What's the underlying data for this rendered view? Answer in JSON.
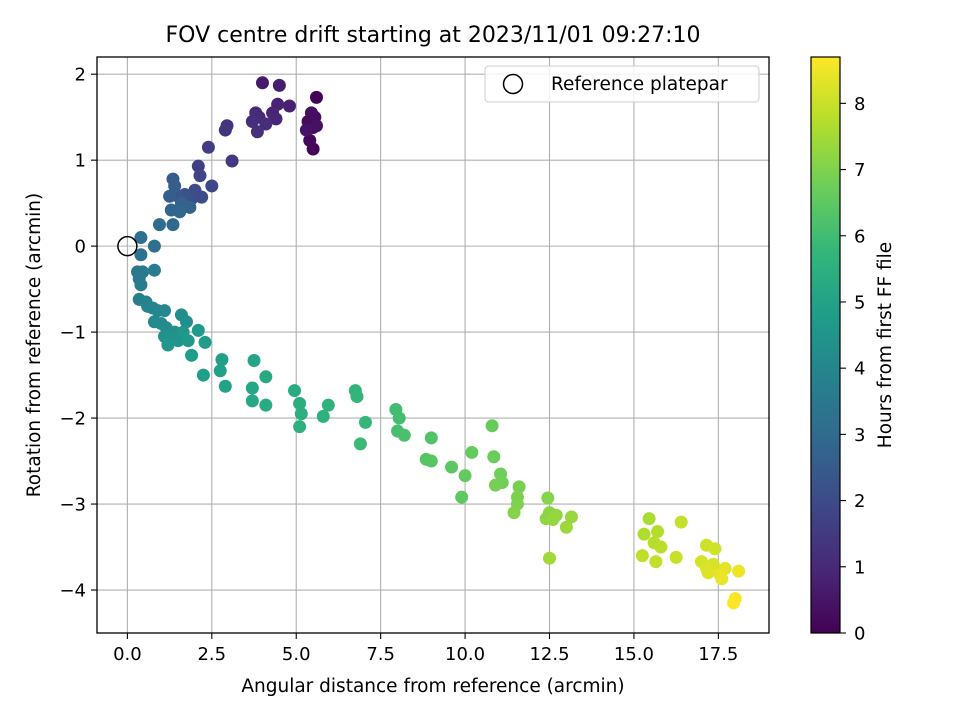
{
  "chart_data": {
    "type": "scatter",
    "title": "FOV centre drift starting at 2023/11/01 09:27:10",
    "xlabel": "Angular distance from reference (arcmin)",
    "ylabel": "Rotation from reference (arcmin)",
    "xlim": [
      -0.9,
      19
    ],
    "ylim": [
      -4.5,
      2.2
    ],
    "xticks": [
      "0.0",
      "2.5",
      "5.0",
      "7.5",
      "10.0",
      "12.5",
      "15.0",
      "17.5"
    ],
    "xtick_values": [
      0,
      2.5,
      5,
      7.5,
      10,
      12.5,
      15,
      17.5
    ],
    "yticks": [
      "−4",
      "−3",
      "−2",
      "−1",
      "0",
      "1",
      "2"
    ],
    "ytick_values": [
      -4,
      -3,
      -2,
      -1,
      0,
      1,
      2
    ],
    "grid": true,
    "legend": {
      "position": "top-right",
      "entries": [
        "Reference platepar"
      ]
    },
    "reference_point": {
      "x": 0,
      "y": 0,
      "label": "Reference platepar"
    },
    "colorbar": {
      "label": "Hours from first FF file",
      "colormap": "viridis",
      "range": [
        0,
        8.7
      ],
      "ticks": [
        "0",
        "1",
        "2",
        "3",
        "4",
        "5",
        "6",
        "7",
        "8"
      ],
      "tick_values": [
        0,
        1,
        2,
        3,
        4,
        5,
        6,
        7,
        8
      ]
    },
    "points": [
      {
        "x": 5.6,
        "y": 1.73,
        "h": 0.05
      },
      {
        "x": 5.5,
        "y": 1.13,
        "h": 0.1
      },
      {
        "x": 5.4,
        "y": 1.23,
        "h": 0.15
      },
      {
        "x": 5.5,
        "y": 1.38,
        "h": 0.2
      },
      {
        "x": 5.35,
        "y": 1.45,
        "h": 0.25
      },
      {
        "x": 5.55,
        "y": 1.5,
        "h": 0.3
      },
      {
        "x": 5.45,
        "y": 1.55,
        "h": 0.35
      },
      {
        "x": 5.6,
        "y": 1.4,
        "h": 0.4
      },
      {
        "x": 5.3,
        "y": 1.35,
        "h": 0.45
      },
      {
        "x": 4.0,
        "y": 1.9,
        "h": 0.6
      },
      {
        "x": 4.5,
        "y": 1.87,
        "h": 0.7
      },
      {
        "x": 4.8,
        "y": 1.63,
        "h": 0.8
      },
      {
        "x": 4.45,
        "y": 1.65,
        "h": 0.85
      },
      {
        "x": 4.3,
        "y": 1.55,
        "h": 0.9
      },
      {
        "x": 4.4,
        "y": 1.48,
        "h": 0.95
      },
      {
        "x": 3.9,
        "y": 1.5,
        "h": 1.0
      },
      {
        "x": 3.8,
        "y": 1.55,
        "h": 1.05
      },
      {
        "x": 4.1,
        "y": 1.42,
        "h": 1.1
      },
      {
        "x": 3.7,
        "y": 1.45,
        "h": 1.15
      },
      {
        "x": 3.85,
        "y": 1.33,
        "h": 1.2
      },
      {
        "x": 2.95,
        "y": 1.4,
        "h": 1.3
      },
      {
        "x": 2.9,
        "y": 1.35,
        "h": 1.35
      },
      {
        "x": 3.1,
        "y": 0.99,
        "h": 1.45
      },
      {
        "x": 2.4,
        "y": 1.15,
        "h": 1.55
      },
      {
        "x": 2.1,
        "y": 0.93,
        "h": 1.65
      },
      {
        "x": 2.15,
        "y": 0.82,
        "h": 1.75
      },
      {
        "x": 2.5,
        "y": 0.7,
        "h": 1.85
      },
      {
        "x": 2.0,
        "y": 0.65,
        "h": 1.95
      },
      {
        "x": 2.2,
        "y": 0.57,
        "h": 2.05
      },
      {
        "x": 1.9,
        "y": 0.55,
        "h": 2.15
      },
      {
        "x": 1.7,
        "y": 0.6,
        "h": 2.25
      },
      {
        "x": 1.5,
        "y": 0.58,
        "h": 2.35
      },
      {
        "x": 1.35,
        "y": 0.78,
        "h": 2.45
      },
      {
        "x": 1.4,
        "y": 0.7,
        "h": 2.55
      },
      {
        "x": 1.25,
        "y": 0.58,
        "h": 2.6
      },
      {
        "x": 1.6,
        "y": 0.5,
        "h": 2.7
      },
      {
        "x": 1.85,
        "y": 0.45,
        "h": 2.75
      },
      {
        "x": 1.3,
        "y": 0.42,
        "h": 2.8
      },
      {
        "x": 1.55,
        "y": 0.4,
        "h": 2.85
      },
      {
        "x": 1.35,
        "y": 0.25,
        "h": 2.95
      },
      {
        "x": 0.95,
        "y": 0.25,
        "h": 3.05
      },
      {
        "x": 0.4,
        "y": 0.1,
        "h": 3.2
      },
      {
        "x": 0.8,
        "y": 0.0,
        "h": 3.25
      },
      {
        "x": 0.4,
        "y": -0.1,
        "h": 3.35
      },
      {
        "x": 0.3,
        "y": -0.3,
        "h": 3.45
      },
      {
        "x": 0.45,
        "y": -0.3,
        "h": 3.5
      },
      {
        "x": 0.35,
        "y": -0.38,
        "h": 3.55
      },
      {
        "x": 0.8,
        "y": -0.28,
        "h": 3.6
      },
      {
        "x": 0.4,
        "y": -0.45,
        "h": 3.65
      },
      {
        "x": 0.35,
        "y": -0.62,
        "h": 3.75
      },
      {
        "x": 0.55,
        "y": -0.65,
        "h": 3.85
      },
      {
        "x": 0.6,
        "y": -0.7,
        "h": 3.9
      },
      {
        "x": 0.75,
        "y": -0.72,
        "h": 3.95
      },
      {
        "x": 0.9,
        "y": -0.75,
        "h": 4.0
      },
      {
        "x": 1.1,
        "y": -0.75,
        "h": 4.05
      },
      {
        "x": 0.8,
        "y": -0.88,
        "h": 4.1
      },
      {
        "x": 1.0,
        "y": -0.9,
        "h": 4.15
      },
      {
        "x": 1.15,
        "y": -0.95,
        "h": 4.2
      },
      {
        "x": 1.6,
        "y": -0.8,
        "h": 4.25
      },
      {
        "x": 1.75,
        "y": -0.88,
        "h": 4.3
      },
      {
        "x": 1.4,
        "y": -1.0,
        "h": 4.35
      },
      {
        "x": 1.1,
        "y": -1.05,
        "h": 4.4
      },
      {
        "x": 1.3,
        "y": -1.08,
        "h": 4.45
      },
      {
        "x": 1.5,
        "y": -1.1,
        "h": 4.5
      },
      {
        "x": 1.2,
        "y": -1.15,
        "h": 4.55
      },
      {
        "x": 1.65,
        "y": -1.0,
        "h": 4.6
      },
      {
        "x": 1.8,
        "y": -1.1,
        "h": 4.65
      },
      {
        "x": 2.1,
        "y": -0.98,
        "h": 4.7
      },
      {
        "x": 2.3,
        "y": -1.12,
        "h": 4.75
      },
      {
        "x": 1.9,
        "y": -1.27,
        "h": 4.8
      },
      {
        "x": 2.25,
        "y": -1.5,
        "h": 4.85
      },
      {
        "x": 2.8,
        "y": -1.32,
        "h": 4.9
      },
      {
        "x": 2.75,
        "y": -1.45,
        "h": 4.95
      },
      {
        "x": 2.9,
        "y": -1.63,
        "h": 5.0
      },
      {
        "x": 3.75,
        "y": -1.33,
        "h": 5.1
      },
      {
        "x": 3.7,
        "y": -1.65,
        "h": 5.15
      },
      {
        "x": 3.7,
        "y": -1.8,
        "h": 5.2
      },
      {
        "x": 4.1,
        "y": -1.52,
        "h": 5.25
      },
      {
        "x": 4.1,
        "y": -1.85,
        "h": 5.3
      },
      {
        "x": 4.95,
        "y": -1.68,
        "h": 5.35
      },
      {
        "x": 5.1,
        "y": -1.83,
        "h": 5.4
      },
      {
        "x": 5.15,
        "y": -1.95,
        "h": 5.45
      },
      {
        "x": 5.1,
        "y": -2.1,
        "h": 5.5
      },
      {
        "x": 5.8,
        "y": -1.98,
        "h": 5.55
      },
      {
        "x": 5.95,
        "y": -1.85,
        "h": 5.6
      },
      {
        "x": 6.75,
        "y": -1.68,
        "h": 5.65
      },
      {
        "x": 6.8,
        "y": -1.75,
        "h": 5.7
      },
      {
        "x": 7.05,
        "y": -2.05,
        "h": 5.8
      },
      {
        "x": 6.9,
        "y": -2.3,
        "h": 5.9
      },
      {
        "x": 7.95,
        "y": -1.9,
        "h": 6.0
      },
      {
        "x": 8.05,
        "y": -2.0,
        "h": 6.05
      },
      {
        "x": 8.0,
        "y": -2.15,
        "h": 6.1
      },
      {
        "x": 8.2,
        "y": -2.2,
        "h": 6.15
      },
      {
        "x": 9.0,
        "y": -2.23,
        "h": 6.3
      },
      {
        "x": 8.85,
        "y": -2.48,
        "h": 6.35
      },
      {
        "x": 9.0,
        "y": -2.5,
        "h": 6.4
      },
      {
        "x": 9.6,
        "y": -2.57,
        "h": 6.45
      },
      {
        "x": 9.9,
        "y": -2.92,
        "h": 6.5
      },
      {
        "x": 10.0,
        "y": -2.67,
        "h": 6.55
      },
      {
        "x": 10.2,
        "y": -2.4,
        "h": 6.6
      },
      {
        "x": 10.8,
        "y": -2.09,
        "h": 6.65
      },
      {
        "x": 10.85,
        "y": -2.45,
        "h": 6.7
      },
      {
        "x": 11.05,
        "y": -2.65,
        "h": 6.75
      },
      {
        "x": 11.1,
        "y": -2.75,
        "h": 6.8
      },
      {
        "x": 10.9,
        "y": -2.78,
        "h": 6.85
      },
      {
        "x": 11.6,
        "y": -2.8,
        "h": 6.9
      },
      {
        "x": 11.55,
        "y": -2.92,
        "h": 6.95
      },
      {
        "x": 11.55,
        "y": -3.0,
        "h": 7.0
      },
      {
        "x": 11.45,
        "y": -3.1,
        "h": 7.05
      },
      {
        "x": 12.45,
        "y": -2.93,
        "h": 7.1
      },
      {
        "x": 12.5,
        "y": -3.1,
        "h": 7.15
      },
      {
        "x": 12.4,
        "y": -3.17,
        "h": 7.2
      },
      {
        "x": 12.7,
        "y": -3.13,
        "h": 7.25
      },
      {
        "x": 12.6,
        "y": -3.18,
        "h": 7.3
      },
      {
        "x": 13.15,
        "y": -3.15,
        "h": 7.35
      },
      {
        "x": 13.0,
        "y": -3.27,
        "h": 7.4
      },
      {
        "x": 12.5,
        "y": -3.63,
        "h": 7.45
      },
      {
        "x": 15.45,
        "y": -3.17,
        "h": 7.6
      },
      {
        "x": 15.3,
        "y": -3.35,
        "h": 7.65
      },
      {
        "x": 15.7,
        "y": -3.32,
        "h": 7.7
      },
      {
        "x": 15.6,
        "y": -3.45,
        "h": 7.75
      },
      {
        "x": 15.8,
        "y": -3.5,
        "h": 7.8
      },
      {
        "x": 15.25,
        "y": -3.6,
        "h": 7.85
      },
      {
        "x": 15.65,
        "y": -3.67,
        "h": 7.9
      },
      {
        "x": 16.4,
        "y": -3.21,
        "h": 7.95
      },
      {
        "x": 16.25,
        "y": -3.62,
        "h": 8.0
      },
      {
        "x": 17.15,
        "y": -3.48,
        "h": 8.05
      },
      {
        "x": 17.4,
        "y": -3.52,
        "h": 8.1
      },
      {
        "x": 17.0,
        "y": -3.67,
        "h": 8.15
      },
      {
        "x": 17.35,
        "y": -3.7,
        "h": 8.2
      },
      {
        "x": 17.15,
        "y": -3.75,
        "h": 8.25
      },
      {
        "x": 17.2,
        "y": -3.8,
        "h": 8.3
      },
      {
        "x": 17.7,
        "y": -3.75,
        "h": 8.35
      },
      {
        "x": 17.55,
        "y": -3.82,
        "h": 8.4
      },
      {
        "x": 17.6,
        "y": -3.87,
        "h": 8.45
      },
      {
        "x": 18.1,
        "y": -3.78,
        "h": 8.5
      },
      {
        "x": 18.0,
        "y": -4.1,
        "h": 8.6
      },
      {
        "x": 17.95,
        "y": -4.15,
        "h": 8.7
      }
    ]
  },
  "colors": {
    "grid": "#b0b0b0",
    "axes": "#000000",
    "viridis_stops": [
      "#440154",
      "#482878",
      "#3e4989",
      "#31688e",
      "#26828e",
      "#1f9e89",
      "#35b779",
      "#6ece58",
      "#b5de2b",
      "#fde725"
    ]
  }
}
